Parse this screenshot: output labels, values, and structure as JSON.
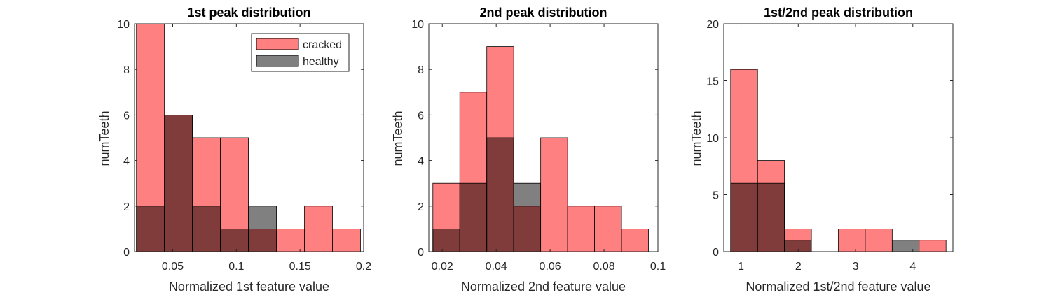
{
  "colors": {
    "cracked": "#ff8080",
    "healthy": "#808080",
    "overlap": "#803b3b",
    "axis": "#262626",
    "bar_edge": "#000000"
  },
  "legend": {
    "placement": "top-right",
    "cracked_label": "cracked",
    "healthy_label": "healthy"
  },
  "chart_data": [
    {
      "type": "bar",
      "title": "1st peak distribution",
      "xlabel": "Normalized 1st feature value",
      "ylabel": "numTeeth",
      "xlim": [
        0.02,
        0.2
      ],
      "ylim": [
        0,
        10
      ],
      "xticks": [
        0.05,
        0.1,
        0.15,
        0.2
      ],
      "xtick_labels": [
        "0.05",
        "0.1",
        "0.15",
        "0.2"
      ],
      "yticks": [
        0,
        2,
        4,
        6,
        8,
        10
      ],
      "ytick_labels": [
        "0",
        "2",
        "4",
        "6",
        "8",
        "10"
      ],
      "bin_edges": [
        0.0215,
        0.0435,
        0.0655,
        0.0875,
        0.1095,
        0.1315,
        0.1535,
        0.1755,
        0.1975
      ],
      "series": [
        {
          "name": "cracked",
          "values": [
            10,
            6,
            5,
            5,
            1,
            1,
            2,
            1
          ]
        },
        {
          "name": "healthy",
          "values": [
            2,
            6,
            2,
            1,
            2,
            0,
            0,
            0
          ]
        }
      ],
      "show_legend": true
    },
    {
      "type": "bar",
      "title": "2nd peak distribution",
      "xlabel": "Normalized 2nd feature value",
      "ylabel": "numTeeth",
      "xlim": [
        0.015,
        0.1
      ],
      "ylim": [
        0,
        10
      ],
      "xticks": [
        0.02,
        0.04,
        0.06,
        0.08,
        0.1
      ],
      "xtick_labels": [
        "0.02",
        "0.04",
        "0.06",
        "0.08",
        "0.1"
      ],
      "yticks": [
        0,
        2,
        4,
        6,
        8,
        10
      ],
      "ytick_labels": [
        "0",
        "2",
        "4",
        "6",
        "8",
        "10"
      ],
      "bin_edges": [
        0.0165,
        0.0265,
        0.0365,
        0.0465,
        0.0565,
        0.0665,
        0.0765,
        0.0865,
        0.0965
      ],
      "series": [
        {
          "name": "cracked",
          "values": [
            3,
            7,
            9,
            2,
            5,
            2,
            2,
            1
          ]
        },
        {
          "name": "healthy",
          "values": [
            1,
            3,
            5,
            3,
            0,
            0,
            0,
            0
          ]
        }
      ],
      "show_legend": false
    },
    {
      "type": "bar",
      "title": "1st/2nd peak distribution",
      "xlabel": "Normalized 1st/2nd feature value",
      "ylabel": "numTeeth",
      "xlim": [
        0.7,
        4.7
      ],
      "ylim": [
        0,
        20
      ],
      "xticks": [
        1,
        2,
        3,
        4
      ],
      "xtick_labels": [
        "1",
        "2",
        "3",
        "4"
      ],
      "yticks": [
        0,
        5,
        10,
        15,
        20
      ],
      "ytick_labels": [
        "0",
        "5",
        "10",
        "15",
        "20"
      ],
      "bin_edges": [
        0.82,
        1.29,
        1.76,
        2.23,
        2.7,
        3.17,
        3.64,
        4.11,
        4.58
      ],
      "series": [
        {
          "name": "cracked",
          "values": [
            16,
            8,
            2,
            0,
            2,
            2,
            0,
            1
          ]
        },
        {
          "name": "healthy",
          "values": [
            6,
            6,
            1,
            0,
            0,
            0,
            1,
            0
          ]
        }
      ],
      "show_legend": false
    }
  ]
}
